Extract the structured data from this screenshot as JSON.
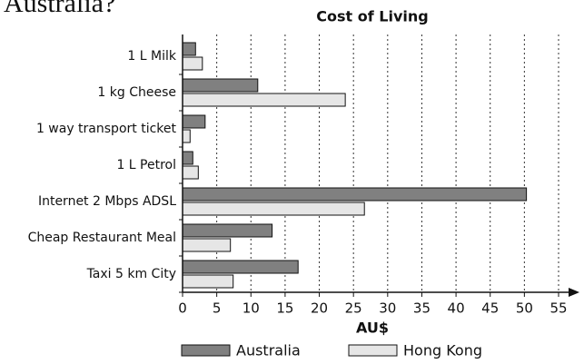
{
  "chart_data": {
    "type": "bar",
    "orientation": "horizontal",
    "heading": "Australia?",
    "title": "Cost of Living",
    "x_label": "AU$",
    "categories": [
      "1 L Milk",
      "1 kg Cheese",
      "1 way transport ticket",
      "1 L Petrol",
      "Internet 2 Mbps ADSL",
      "Cheap Restaurant Meal",
      "Taxi 5 km City"
    ],
    "series": [
      {
        "name": "Australia",
        "color": "#808080",
        "values": [
          1.9,
          11,
          3.3,
          1.5,
          50.3,
          13.1,
          16.9
        ]
      },
      {
        "name": "Hong Kong",
        "color": "#e6e6e6",
        "values": [
          2.9,
          23.8,
          1.1,
          2.3,
          26.6,
          7.0,
          7.4
        ]
      }
    ],
    "xlim": [
      0,
      55
    ],
    "xticks": [
      0,
      5,
      10,
      15,
      20,
      25,
      30,
      35,
      40,
      45,
      50,
      55
    ],
    "grid": true,
    "legend": "bottom"
  }
}
